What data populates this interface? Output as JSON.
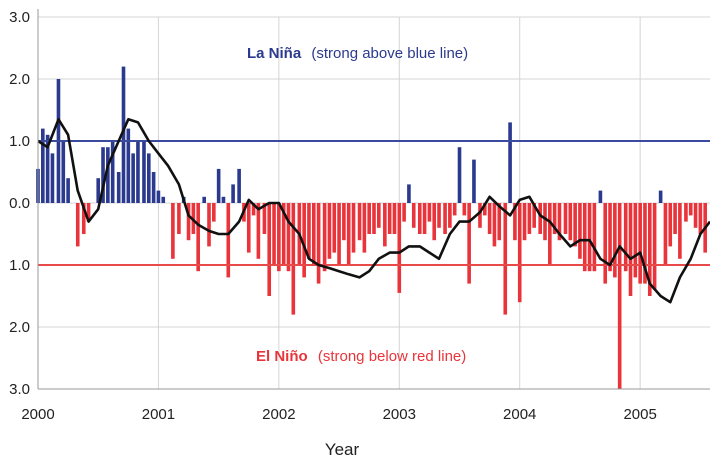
{
  "chart_data": {
    "type": "bar",
    "xlabel": "Year",
    "ylabel": "",
    "xlim": [
      2000,
      2005.58
    ],
    "ylim": [
      -3.0,
      3.0
    ],
    "x_ticks": [
      2000,
      2001,
      2002,
      2003,
      2004,
      2005
    ],
    "x_tick_labels": [
      "2000",
      "2001",
      "2002",
      "2003",
      "2004",
      "2005"
    ],
    "y_ticks": [
      3,
      2,
      1,
      0,
      -1,
      -2,
      -3
    ],
    "y_tick_labels": [
      "3.0",
      "2.0",
      "1.0",
      "0.0",
      "1.0",
      "2.0",
      "3.0"
    ],
    "grid": true,
    "thresholds": [
      {
        "value": 1.0,
        "color": "#3a4a9e"
      },
      {
        "value": -1.0,
        "color": "#e84a4a"
      }
    ],
    "annotations": [
      {
        "text_bold": "La Niña",
        "text_rest": "(strong above blue line)",
        "color": "#2b3a8e"
      },
      {
        "text_bold": "El Niño",
        "text_rest": "(strong below red line)",
        "color": "#e8343a"
      }
    ],
    "colors": {
      "positive": "#2b3a8e",
      "negative": "#e8343a",
      "smooth": "#111111"
    },
    "series": [
      {
        "type": "bar",
        "x": [
          2000.0,
          2000.04,
          2000.08,
          2000.12,
          2000.17,
          2000.21,
          2000.25,
          2000.29,
          2000.33,
          2000.38,
          2000.42,
          2000.46,
          2000.5,
          2000.54,
          2000.58,
          2000.62,
          2000.67,
          2000.71,
          2000.75,
          2000.79,
          2000.83,
          2000.88,
          2000.92,
          2000.96,
          2001.0,
          2001.04,
          2001.08,
          2001.12,
          2001.17,
          2001.21,
          2001.25,
          2001.29,
          2001.33,
          2001.38,
          2001.42,
          2001.46,
          2001.5,
          2001.54,
          2001.58,
          2001.62,
          2001.67,
          2001.71,
          2001.75,
          2001.79,
          2001.83,
          2001.88,
          2001.92,
          2001.96,
          2002.0,
          2002.04,
          2002.08,
          2002.12,
          2002.17,
          2002.21,
          2002.25,
          2002.29,
          2002.33,
          2002.38,
          2002.42,
          2002.46,
          2002.5,
          2002.54,
          2002.58,
          2002.62,
          2002.67,
          2002.71,
          2002.75,
          2002.79,
          2002.83,
          2002.88,
          2002.92,
          2002.96,
          2003.0,
          2003.04,
          2003.08,
          2003.12,
          2003.17,
          2003.21,
          2003.25,
          2003.29,
          2003.33,
          2003.38,
          2003.42,
          2003.46,
          2003.5,
          2003.54,
          2003.58,
          2003.62,
          2003.67,
          2003.71,
          2003.75,
          2003.79,
          2003.83,
          2003.88,
          2003.92,
          2003.96,
          2004.0,
          2004.04,
          2004.08,
          2004.12,
          2004.17,
          2004.21,
          2004.25,
          2004.29,
          2004.33,
          2004.38,
          2004.42,
          2004.46,
          2004.5,
          2004.54,
          2004.58,
          2004.62,
          2004.67,
          2004.71,
          2004.75,
          2004.79,
          2004.83,
          2004.88,
          2004.92,
          2004.96,
          2005.0,
          2005.04,
          2005.08,
          2005.12,
          2005.17,
          2005.21,
          2005.25,
          2005.29,
          2005.33,
          2005.38,
          2005.42,
          2005.46,
          2005.5,
          2005.54
        ],
        "values": [
          0.55,
          1.2,
          1.1,
          0.8,
          2.0,
          1.0,
          0.4,
          0.0,
          -0.7,
          -0.5,
          -0.3,
          0.0,
          0.4,
          0.9,
          0.9,
          1.0,
          0.5,
          2.2,
          1.2,
          0.8,
          1.0,
          1.0,
          0.8,
          0.5,
          0.2,
          0.1,
          0.0,
          -0.9,
          -0.5,
          0.1,
          -0.6,
          -0.5,
          -1.1,
          0.1,
          -0.7,
          -0.3,
          0.55,
          0.1,
          -1.2,
          0.3,
          0.55,
          -0.3,
          -0.8,
          -0.2,
          -0.9,
          -0.5,
          -1.5,
          -1.0,
          -1.1,
          -1.0,
          -1.1,
          -1.8,
          -1.0,
          -1.2,
          -0.9,
          -1.0,
          -1.3,
          -1.1,
          -0.9,
          -0.8,
          -1.0,
          -0.6,
          -1.0,
          -0.8,
          -0.6,
          -0.8,
          -0.5,
          -0.5,
          -0.4,
          -0.7,
          -0.5,
          -0.5,
          -1.45,
          -0.3,
          0.3,
          -0.4,
          -0.5,
          -0.5,
          -0.3,
          -0.6,
          -0.4,
          -0.5,
          -0.4,
          -0.2,
          0.9,
          -0.2,
          -1.3,
          0.7,
          -0.4,
          -0.2,
          -0.5,
          -0.7,
          -0.6,
          -1.8,
          1.3,
          -0.6,
          -1.6,
          -0.6,
          -0.5,
          -0.4,
          -0.5,
          -0.6,
          -1.0,
          -0.5,
          -0.6,
          -0.5,
          -0.6,
          -0.7,
          -0.9,
          -1.1,
          -1.1,
          -1.1,
          0.2,
          -1.3,
          -1.1,
          -1.2,
          -3.2,
          -1.1,
          -1.5,
          -1.2,
          -1.3,
          -1.3,
          -1.5,
          -1.4,
          0.2,
          -1.0,
          -0.7,
          -0.5,
          -0.9,
          -0.3,
          -0.2,
          -0.4,
          -0.5,
          -0.8
        ]
      },
      {
        "type": "line",
        "name": "",
        "x": [
          2000.0,
          2000.08,
          2000.17,
          2000.25,
          2000.33,
          2000.42,
          2000.5,
          2000.58,
          2000.67,
          2000.75,
          2000.83,
          2000.92,
          2001.0,
          2001.08,
          2001.17,
          2001.25,
          2001.33,
          2001.42,
          2001.5,
          2001.58,
          2001.67,
          2001.75,
          2001.83,
          2001.92,
          2002.0,
          2002.08,
          2002.17,
          2002.25,
          2002.33,
          2002.42,
          2002.5,
          2002.58,
          2002.67,
          2002.75,
          2002.83,
          2002.92,
          2003.0,
          2003.08,
          2003.17,
          2003.25,
          2003.33,
          2003.42,
          2003.5,
          2003.58,
          2003.67,
          2003.75,
          2003.83,
          2003.92,
          2004.0,
          2004.08,
          2004.17,
          2004.25,
          2004.33,
          2004.42,
          2004.5,
          2004.58,
          2004.67,
          2004.75,
          2004.83,
          2004.92,
          2005.0,
          2005.08,
          2005.17,
          2005.25,
          2005.33,
          2005.42,
          2005.5,
          2005.58
        ],
        "values": [
          1.0,
          0.9,
          1.35,
          1.1,
          0.2,
          -0.3,
          -0.1,
          0.6,
          1.0,
          1.35,
          1.3,
          1.0,
          0.8,
          0.6,
          0.3,
          -0.2,
          -0.35,
          -0.45,
          -0.5,
          -0.5,
          -0.3,
          0.05,
          -0.1,
          0.0,
          0.0,
          -0.3,
          -0.5,
          -0.9,
          -1.0,
          -1.05,
          -1.1,
          -1.15,
          -1.2,
          -1.1,
          -0.9,
          -0.8,
          -0.8,
          -0.7,
          -0.7,
          -0.8,
          -0.9,
          -0.5,
          -0.3,
          -0.3,
          -0.15,
          0.1,
          -0.05,
          -0.2,
          0.05,
          0.1,
          -0.2,
          -0.3,
          -0.5,
          -0.7,
          -0.6,
          -0.6,
          -0.9,
          -1.0,
          -0.7,
          -0.9,
          -0.8,
          -1.3,
          -1.5,
          -1.6,
          -1.2,
          -0.9,
          -0.5,
          -0.3
        ]
      }
    ]
  }
}
